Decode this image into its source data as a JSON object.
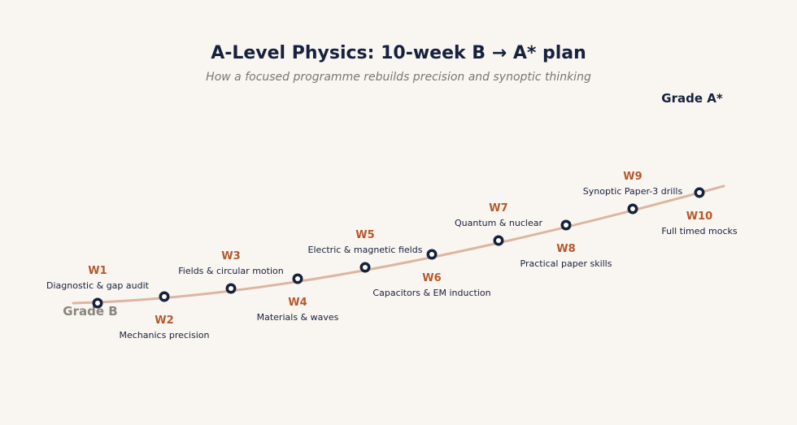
{
  "header": {
    "title": "A-Level Physics: 10-week B → A* plan",
    "subtitle": "How a focused programme rebuilds precision and synoptic thinking"
  },
  "endpoints": {
    "start": "Grade B",
    "end": "Grade A*"
  },
  "colors": {
    "background": "#f9f5f1",
    "navy": "#16213d",
    "accent": "#b5592b",
    "curve": "#ddb5a1",
    "muted": "#8a857d"
  },
  "weeks": [
    {
      "week": "W1",
      "label": "Diagnostic & gap audit",
      "side": "above"
    },
    {
      "week": "W2",
      "label": "Mechanics precision",
      "side": "below"
    },
    {
      "week": "W3",
      "label": "Fields & circular motion",
      "side": "above"
    },
    {
      "week": "W4",
      "label": "Materials & waves",
      "side": "below"
    },
    {
      "week": "W5",
      "label": "Electric & magnetic fields",
      "side": "above"
    },
    {
      "week": "W6",
      "label": "Capacitors & EM induction",
      "side": "below"
    },
    {
      "week": "W7",
      "label": "Quantum & nuclear",
      "side": "above"
    },
    {
      "week": "W8",
      "label": "Practical paper skills",
      "side": "below"
    },
    {
      "week": "W9",
      "label": "Synoptic Paper-3 drills",
      "side": "above"
    },
    {
      "week": "W10",
      "label": "Full timed mocks",
      "side": "below"
    }
  ]
}
